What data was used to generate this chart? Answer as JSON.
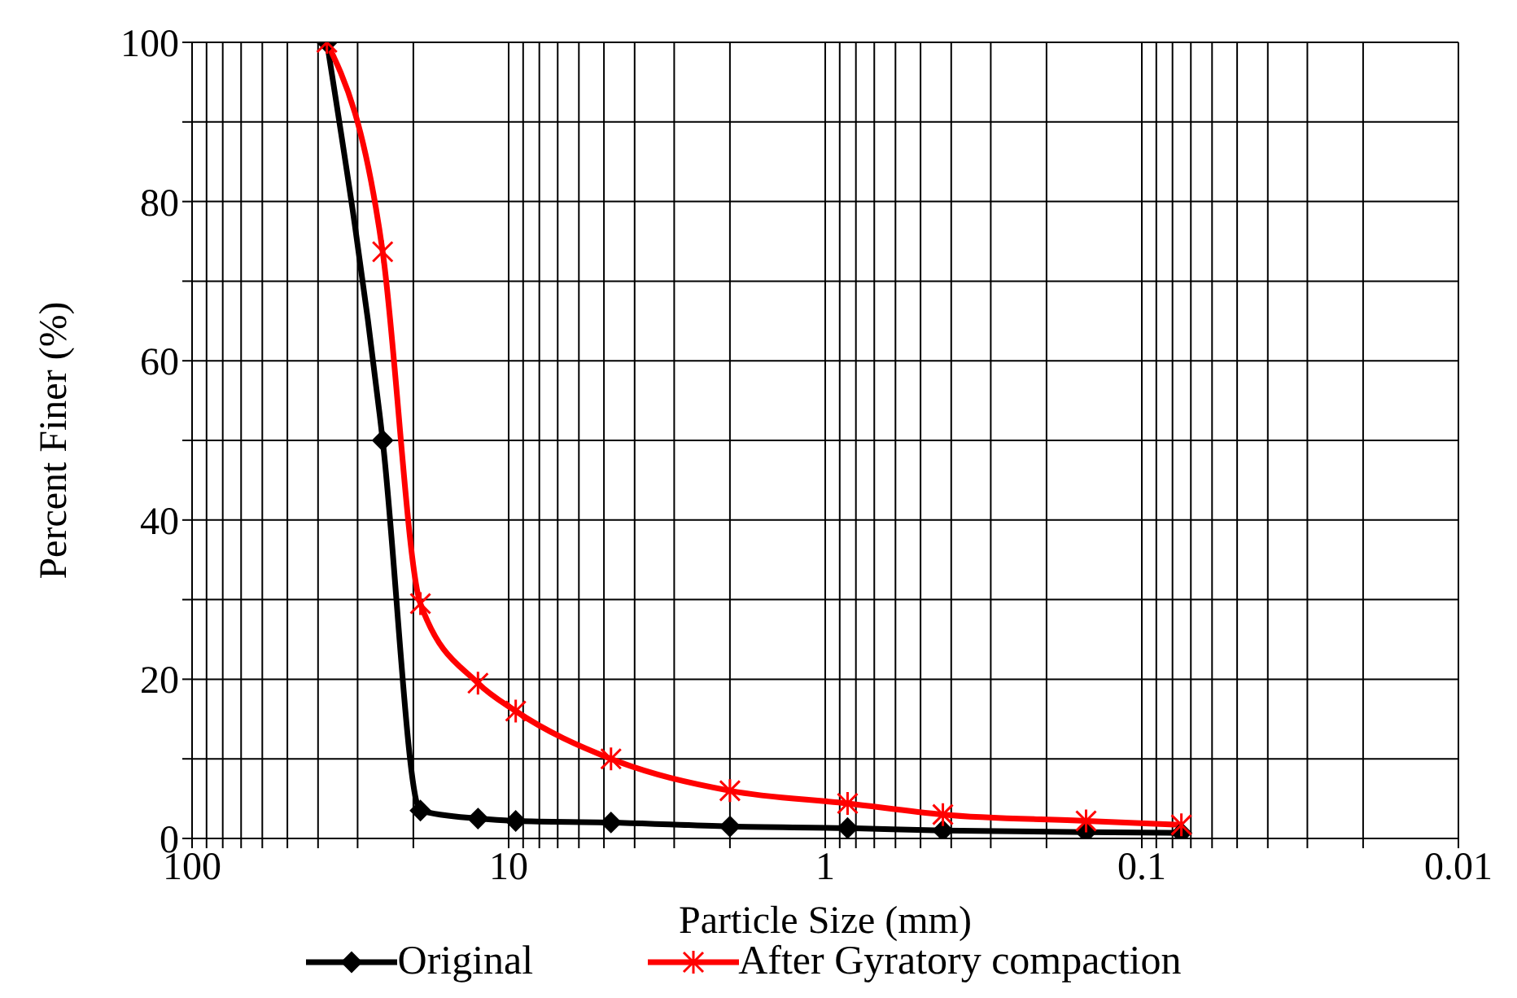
{
  "chart_data": {
    "type": "line",
    "xlabel": "Particle Size (mm)",
    "ylabel": "Percent Finer (%)",
    "log": "x",
    "xlim": [
      100,
      0.01
    ],
    "ylim": [
      0,
      100
    ],
    "xticks": [
      100,
      {
        "value": 90,
        "label": null
      },
      {
        "value": 80,
        "label": null
      },
      {
        "value": 70,
        "label": null
      },
      {
        "value": 60,
        "label": null
      },
      {
        "value": 50,
        "label": null
      },
      {
        "value": 40,
        "label": null
      },
      {
        "value": 30,
        "label": null
      },
      {
        "value": 20,
        "label": null
      },
      10,
      {
        "value": 9,
        "label": null
      },
      {
        "value": 8,
        "label": null
      },
      {
        "value": 7,
        "label": null
      },
      {
        "value": 6,
        "label": null
      },
      {
        "value": 5,
        "label": null
      },
      {
        "value": 4,
        "label": null
      },
      {
        "value": 3,
        "label": null
      },
      {
        "value": 2,
        "label": null
      },
      1,
      {
        "value": 0.9,
        "label": null
      },
      {
        "value": 0.8,
        "label": null
      },
      {
        "value": 0.7,
        "label": null
      },
      {
        "value": 0.6,
        "label": null
      },
      {
        "value": 0.5,
        "label": null
      },
      {
        "value": 0.4,
        "label": null
      },
      {
        "value": 0.3,
        "label": null
      },
      {
        "value": 0.2,
        "label": null
      },
      0.1,
      {
        "value": 0.09,
        "label": null
      },
      {
        "value": 0.08,
        "label": null
      },
      {
        "value": 0.07,
        "label": null
      },
      {
        "value": 0.06,
        "label": null
      },
      {
        "value": 0.05,
        "label": null
      },
      {
        "value": 0.04,
        "label": null
      },
      {
        "value": 0.03,
        "label": null
      },
      {
        "value": 0.02,
        "label": null
      },
      0.01
    ],
    "yticks": [
      0,
      {
        "value": 10,
        "label": null
      },
      20,
      {
        "value": 30,
        "label": null
      },
      40,
      {
        "value": 50,
        "label": null
      },
      60,
      {
        "value": 70,
        "label": null
      },
      80,
      {
        "value": 90,
        "label": null
      },
      100
    ],
    "grid": true,
    "legend": "bottom",
    "line_style": "solid",
    "series": [
      {
        "name": "Original",
        "color": "#000000",
        "marker": "diamond",
        "x": [
          37.5,
          25,
          19,
          12.5,
          9.5,
          4.75,
          2,
          0.85,
          0.425,
          0.15,
          0.075
        ],
        "values": [
          100,
          50,
          3.5,
          2.5,
          2.2,
          2,
          1.5,
          1.3,
          1,
          0.8,
          0.7
        ]
      },
      {
        "name": "After Gyratory compaction",
        "color": "#ff0000",
        "marker": "cross",
        "x": [
          37.5,
          25,
          19,
          12.5,
          9.5,
          4.75,
          2,
          0.85,
          0.425,
          0.15,
          0.075
        ],
        "values": [
          100,
          73.7,
          29.5,
          19.5,
          16,
          10,
          6,
          4.4,
          3,
          2.2,
          1.7
        ]
      }
    ]
  }
}
